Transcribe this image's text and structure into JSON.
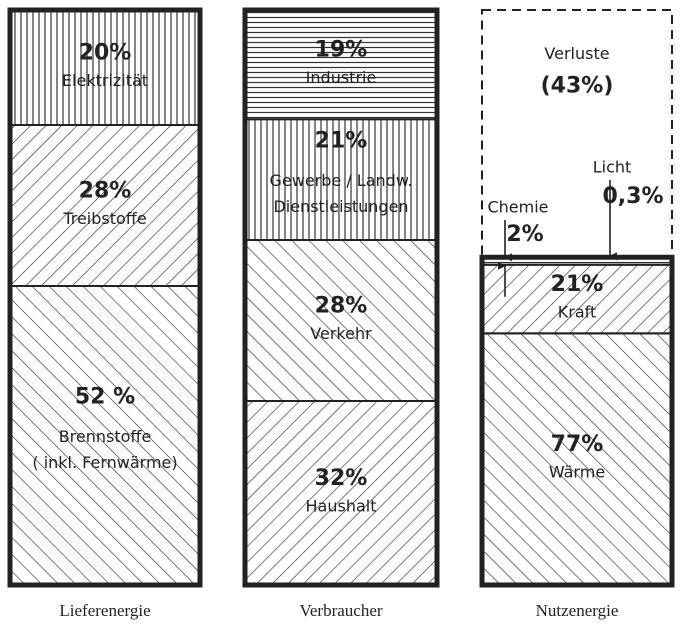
{
  "chart_data": {
    "type": "stacked-column",
    "ylim": [
      0,
      100
    ],
    "columns": [
      {
        "name": "Lieferenergie",
        "segments": [
          {
            "name": [
              "Elektrizität"
            ],
            "value": 20,
            "value_label": "20%",
            "hatch": "vertical"
          },
          {
            "name": [
              "Treibstoffe"
            ],
            "value": 28,
            "value_label": "28%",
            "hatch": "diag-up"
          },
          {
            "name": [
              "Brennstoffe",
              "( inkl. Fernwärme)"
            ],
            "value": 52,
            "value_label": "52 %",
            "hatch": "diag-down"
          }
        ]
      },
      {
        "name": "Verbraucher",
        "segments": [
          {
            "name": [
              "Industrie"
            ],
            "value": 19,
            "value_label": "19%",
            "hatch": "horizontal"
          },
          {
            "name": [
              "Gewerbe / Landw.",
              "Dienstleistungen"
            ],
            "value": 21,
            "value_label": "21%",
            "hatch": "vertical"
          },
          {
            "name": [
              "Verkehr"
            ],
            "value": 28,
            "value_label": "28%",
            "hatch": "diag-down"
          },
          {
            "name": [
              "Haushalt"
            ],
            "value": 32,
            "value_label": "32%",
            "hatch": "diag-up"
          }
        ]
      },
      {
        "name": "Nutzenergie",
        "loss": {
          "name": [
            "Verluste"
          ],
          "value": 43,
          "value_label": "(43%)"
        },
        "segments": [
          {
            "name": [
              "Licht"
            ],
            "value": 0.3,
            "value_label": "0,3%",
            "hatch": "horizontal"
          },
          {
            "name": [
              "Chemie"
            ],
            "value": 2,
            "value_label": "2%",
            "hatch": "horizontal"
          },
          {
            "name": [
              "Kraft"
            ],
            "value": 21,
            "value_label": "21%",
            "hatch": "diag-up"
          },
          {
            "name": [
              "Wärme"
            ],
            "value": 77,
            "value_label": "77%",
            "hatch": "diag-down"
          }
        ]
      }
    ]
  }
}
